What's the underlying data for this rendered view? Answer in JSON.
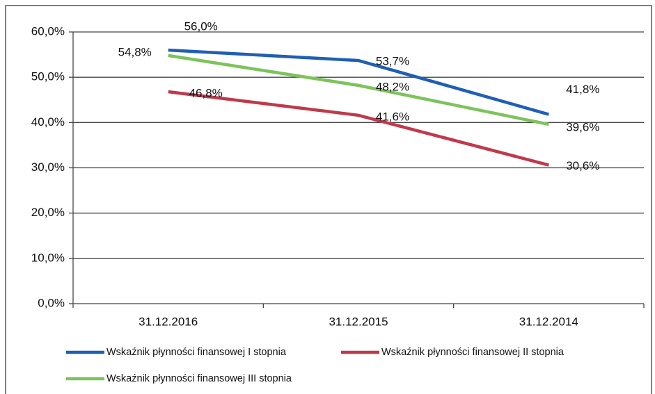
{
  "chart_data": {
    "type": "line",
    "categories": [
      "31.12.2016",
      "31.12.2015",
      "31.12.2014"
    ],
    "series": [
      {
        "name": "Wskaźnik płynności finansowej I stopnia",
        "color": "#1f5fb4",
        "values": [
          56.0,
          53.7,
          41.8
        ],
        "value_labels": [
          "56,0%",
          "53,7%",
          "41,8%"
        ]
      },
      {
        "name": "Wskaźnik płynności finansowej II stopnia",
        "color": "#c0394b",
        "values": [
          46.8,
          41.6,
          30.6
        ],
        "value_labels": [
          "46,8%",
          "41,6%",
          "30,6%"
        ]
      },
      {
        "name": "Wskaźnik płynności finansowej III stopnia",
        "color": "#7dc35b",
        "values": [
          54.8,
          48.2,
          39.6
        ],
        "value_labels": [
          "54,8%",
          "48,2%",
          "39,6%"
        ]
      }
    ],
    "ylim": [
      0,
      60
    ],
    "yticks": [
      {
        "value": 0,
        "label": "0,0%"
      },
      {
        "value": 10,
        "label": "10,0%"
      },
      {
        "value": 20,
        "label": "20,0%"
      },
      {
        "value": 30,
        "label": "30,0%"
      },
      {
        "value": 40,
        "label": "40,0%"
      },
      {
        "value": 50,
        "label": "50,0%"
      },
      {
        "value": 60,
        "label": "60,0%"
      }
    ],
    "grid": true
  }
}
